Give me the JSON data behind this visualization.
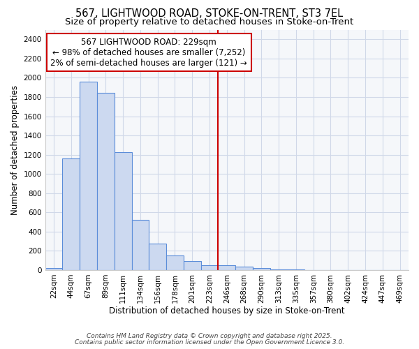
{
  "title1": "567, LIGHTWOOD ROAD, STOKE-ON-TRENT, ST3 7EL",
  "title2": "Size of property relative to detached houses in Stoke-on-Trent",
  "xlabel": "Distribution of detached houses by size in Stoke-on-Trent",
  "ylabel": "Number of detached properties",
  "categories": [
    "22sqm",
    "44sqm",
    "67sqm",
    "89sqm",
    "111sqm",
    "134sqm",
    "156sqm",
    "178sqm",
    "201sqm",
    "223sqm",
    "246sqm",
    "268sqm",
    "290sqm",
    "313sqm",
    "335sqm",
    "357sqm",
    "380sqm",
    "402sqm",
    "424sqm",
    "447sqm",
    "469sqm"
  ],
  "values": [
    25,
    1160,
    1960,
    1845,
    1225,
    520,
    275,
    155,
    95,
    50,
    50,
    35,
    20,
    8,
    5,
    3,
    2,
    1,
    1,
    1,
    1
  ],
  "bar_color": "#ccd9f0",
  "bar_edge_color": "#5b8dd9",
  "vline_x": 9.5,
  "vline_color": "#cc0000",
  "annotation_line1": "567 LIGHTWOOD ROAD: 229sqm",
  "annotation_line2": "← 98% of detached houses are smaller (7,252)",
  "annotation_line3": "2% of semi-detached houses are larger (121) →",
  "annotation_box_color": "#ffffff",
  "annotation_box_edge": "#cc0000",
  "ylim": [
    0,
    2500
  ],
  "yticks": [
    0,
    200,
    400,
    600,
    800,
    1000,
    1200,
    1400,
    1600,
    1800,
    2000,
    2200,
    2400
  ],
  "footer1": "Contains HM Land Registry data © Crown copyright and database right 2025.",
  "footer2": "Contains public sector information licensed under the Open Government Licence 3.0.",
  "bg_color": "#ffffff",
  "plot_bg_color": "#f5f7fa",
  "grid_color": "#d0d8e8",
  "title_fontsize": 10.5,
  "subtitle_fontsize": 9.5,
  "annotation_fontsize": 8.5,
  "tick_fontsize": 7.5,
  "ylabel_fontsize": 8.5,
  "xlabel_fontsize": 8.5,
  "footer_fontsize": 6.5
}
